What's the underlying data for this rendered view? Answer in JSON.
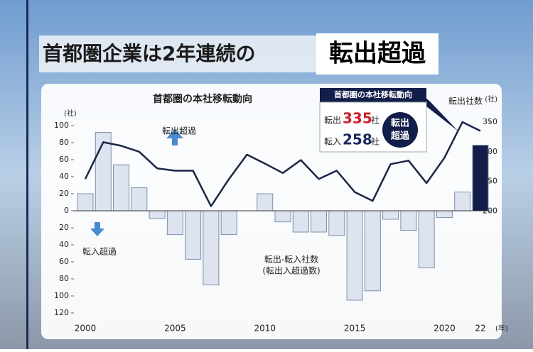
{
  "header": {
    "title": "首都圏企業は2年連続の",
    "title_highlight": "転出超過"
  },
  "chart_data": {
    "type": "bar-line",
    "title": "首都圏の本社移転動向",
    "categories": [
      "2000",
      null,
      null,
      null,
      null,
      "2005",
      null,
      null,
      null,
      null,
      "2010",
      null,
      null,
      null,
      null,
      "2015",
      null,
      null,
      null,
      null,
      "2020",
      null,
      "22"
    ],
    "x_unit": "(年)",
    "y_unit": "(社)",
    "y2_unit": "(社)",
    "series": [
      {
        "name": "転出-転入社数",
        "name_note": "(転出入超過数)",
        "type": "bar",
        "color": "#dde4f0",
        "colors": [
          "#dde4f0",
          "#dde4f0",
          "#dde4f0",
          "#dde4f0",
          "#dde4f0",
          "#dde4f0",
          "#dde4f0",
          "#dde4f0",
          "#dde4f0",
          "#dde4f0",
          "#dde4f0",
          "#dde4f0",
          "#dde4f0",
          "#dde4f0",
          "#dde4f0",
          "#dde4f0",
          "#dde4f0",
          "#dde4f0",
          "#dde4f0",
          "#dde4f0",
          "#dde4f0",
          "#dde4f0",
          "#121d4a"
        ],
        "values": [
          20,
          92,
          54,
          27,
          -9,
          -28,
          -57,
          -87,
          -28,
          0,
          20,
          -13,
          -25,
          -25,
          -29,
          -105,
          -94,
          -10,
          -23,
          -67,
          -8,
          22,
          77
        ]
      },
      {
        "name": "転出社数",
        "type": "line",
        "axis": "y2",
        "color": "#1b2645",
        "values": [
          254,
          316,
          310,
          300,
          272,
          268,
          268,
          208,
          254,
          295,
          280,
          264,
          286,
          254,
          268,
          232,
          217,
          279,
          285,
          247,
          290,
          350,
          335
        ]
      }
    ],
    "ylim": [
      -120,
      100
    ],
    "yticks": [
      {
        "value": -120,
        "label": "120"
      },
      {
        "value": -100,
        "label": "100"
      },
      {
        "value": -80,
        "label": "80"
      },
      {
        "value": -60,
        "label": "60"
      },
      {
        "value": -40,
        "label": "40"
      },
      {
        "value": -20,
        "label": "20"
      },
      0,
      20,
      40,
      60,
      80,
      100
    ],
    "y2lim": [
      28,
      344
    ],
    "y2ticks": [
      200,
      250,
      300,
      350
    ],
    "annotations": {
      "up": "転出超過",
      "down": "転入超過"
    },
    "inset": {
      "title": "首都圏の本社移転動向",
      "out_label": "転出",
      "out_value": 335,
      "in_label": "転入",
      "in_value": 258,
      "unit": "社",
      "badge_line1": "転出",
      "badge_line2": "超過"
    }
  }
}
